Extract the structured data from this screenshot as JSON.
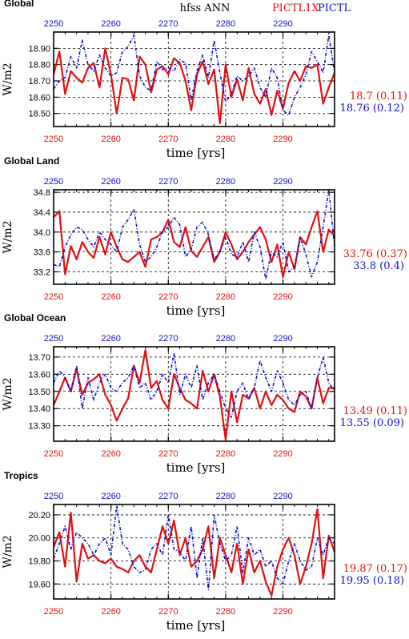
{
  "header": {
    "title": "hfss ANN",
    "legend_run1": "PICTL1X",
    "legend_run2": "PICTL"
  },
  "colors": {
    "run1": "#e01010",
    "run2": "#1010d0",
    "axis": "#000000",
    "grid": "#000000"
  },
  "chart_data": [
    {
      "type": "line",
      "title": "Global",
      "xlabel": "time [yrs]",
      "ylabel": "W/m2",
      "xlim": [
        2250,
        2299
      ],
      "ylim": [
        18.42,
        19.0
      ],
      "grid": true,
      "yticks": [
        18.5,
        18.6,
        18.7,
        18.8,
        18.9
      ],
      "ytick_labels": [
        "18.50",
        "18.60",
        "18.70",
        "18.80",
        "18.90"
      ],
      "xticks": [
        2250,
        2260,
        2270,
        2280,
        2290
      ],
      "xtick_labels": [
        "2250",
        "2260",
        "2270",
        "2280",
        "2290"
      ],
      "series": [
        {
          "name": "PICTL1X",
          "color": "#e01010",
          "stat": "18.7 (0.11)",
          "values": [
            18.74,
            18.88,
            18.62,
            18.76,
            18.72,
            18.69,
            18.78,
            18.81,
            18.66,
            18.9,
            18.74,
            18.5,
            18.72,
            18.71,
            18.58,
            18.85,
            18.8,
            18.63,
            18.77,
            18.79,
            18.74,
            18.84,
            18.81,
            18.7,
            18.52,
            18.74,
            18.82,
            18.68,
            18.77,
            18.44,
            18.8,
            18.6,
            18.71,
            18.58,
            18.78,
            18.62,
            18.56,
            18.65,
            18.49,
            18.64,
            18.53,
            18.69,
            18.76,
            18.7,
            18.79,
            18.78,
            18.8,
            18.56,
            18.66,
            18.75
          ]
        },
        {
          "name": "PICTL",
          "color": "#1010d0",
          "stat": "18.76 (0.12)",
          "values": [
            18.65,
            18.7,
            18.72,
            18.85,
            18.78,
            18.95,
            18.8,
            18.76,
            18.86,
            18.78,
            18.73,
            18.75,
            18.88,
            18.91,
            18.98,
            18.73,
            18.66,
            18.64,
            18.82,
            18.77,
            18.78,
            18.76,
            18.83,
            18.81,
            18.58,
            18.76,
            18.86,
            18.72,
            18.95,
            18.75,
            18.57,
            18.62,
            18.73,
            18.7,
            18.73,
            18.78,
            18.66,
            18.6,
            18.78,
            18.72,
            18.52,
            18.49,
            18.6,
            18.66,
            18.74,
            18.88,
            18.82,
            18.75,
            18.98,
            18.75
          ]
        }
      ]
    },
    {
      "type": "line",
      "title": "Global Land",
      "xlabel": "time [yrs]",
      "ylabel": "W/m2",
      "xlim": [
        2250,
        2299
      ],
      "ylim": [
        32.95,
        34.85
      ],
      "grid": true,
      "yticks": [
        33.2,
        33.6,
        34.0,
        34.4,
        34.8
      ],
      "ytick_labels": [
        "33.2",
        "33.6",
        "34.0",
        "34.4",
        "34.8"
      ],
      "xticks": [
        2250,
        2260,
        2270,
        2280,
        2290
      ],
      "xtick_labels": [
        "2250",
        "2260",
        "2270",
        "2280",
        "2290"
      ],
      "series": [
        {
          "name": "PICTL1X",
          "color": "#e01010",
          "stat": "33.76 (0.37)",
          "values": [
            34.3,
            34.42,
            33.15,
            33.72,
            33.45,
            33.8,
            33.6,
            33.48,
            33.9,
            33.55,
            34.0,
            33.7,
            33.45,
            33.4,
            33.5,
            33.6,
            33.3,
            33.85,
            33.9,
            34.0,
            34.25,
            33.8,
            33.7,
            34.1,
            33.62,
            33.5,
            33.7,
            33.9,
            33.4,
            33.6,
            34.0,
            33.75,
            33.45,
            33.6,
            33.8,
            33.95,
            34.1,
            33.85,
            33.4,
            33.75,
            33.1,
            33.6,
            33.25,
            33.9,
            33.75,
            34.1,
            34.42,
            33.6,
            34.05,
            33.92
          ]
        },
        {
          "name": "PICTL",
          "color": "#1010d0",
          "stat": "33.8 (0.4)",
          "values": [
            33.35,
            33.3,
            33.7,
            33.95,
            34.1,
            34.05,
            33.85,
            33.7,
            34.0,
            33.85,
            33.75,
            33.6,
            34.1,
            34.25,
            34.45,
            33.75,
            33.4,
            33.5,
            33.7,
            34.0,
            34.1,
            34.3,
            34.15,
            33.5,
            33.65,
            34.1,
            34.2,
            33.95,
            33.45,
            33.6,
            33.9,
            33.55,
            33.5,
            33.8,
            33.4,
            34.0,
            33.7,
            33.05,
            33.6,
            33.5,
            33.8,
            33.2,
            33.3,
            33.9,
            33.55,
            33.1,
            33.4,
            34.1,
            34.85,
            33.7
          ]
        }
      ]
    },
    {
      "type": "line",
      "title": "Global Ocean",
      "xlabel": "time [yrs]",
      "ylabel": "W/m2",
      "xlim": [
        2250,
        2299
      ],
      "ylim": [
        13.21,
        13.76
      ],
      "grid": true,
      "yticks": [
        13.3,
        13.4,
        13.5,
        13.6,
        13.7
      ],
      "ytick_labels": [
        "13.30",
        "13.40",
        "13.50",
        "13.60",
        "13.70"
      ],
      "xticks": [
        2250,
        2260,
        2270,
        2280,
        2290
      ],
      "xtick_labels": [
        "2250",
        "2260",
        "2270",
        "2280",
        "2290"
      ],
      "series": [
        {
          "name": "PICTL1X",
          "color": "#e01010",
          "stat": "13.49 (0.11)",
          "values": [
            13.42,
            13.5,
            13.58,
            13.5,
            13.63,
            13.48,
            13.55,
            13.57,
            13.6,
            13.48,
            13.42,
            13.33,
            13.4,
            13.46,
            13.65,
            13.55,
            13.74,
            13.52,
            13.56,
            13.45,
            13.4,
            13.6,
            13.52,
            13.45,
            13.43,
            13.4,
            13.62,
            13.5,
            13.6,
            13.47,
            13.22,
            13.5,
            13.32,
            13.48,
            13.46,
            13.52,
            13.4,
            13.5,
            13.42,
            13.48,
            13.45,
            13.4,
            13.38,
            13.5,
            13.47,
            13.4,
            13.58,
            13.43,
            13.52,
            13.52
          ]
        },
        {
          "name": "PICTL",
          "color": "#1010d0",
          "stat": "13.55 (0.09)",
          "values": [
            13.55,
            13.62,
            13.58,
            13.5,
            13.65,
            13.4,
            13.58,
            13.45,
            13.55,
            13.6,
            13.52,
            13.5,
            13.55,
            13.58,
            13.65,
            13.52,
            13.55,
            13.45,
            13.5,
            13.6,
            13.55,
            13.72,
            13.48,
            13.6,
            13.52,
            13.65,
            13.45,
            13.55,
            13.6,
            13.5,
            13.4,
            13.35,
            13.5,
            13.55,
            13.45,
            13.52,
            13.68,
            13.58,
            13.5,
            13.62,
            13.55,
            13.45,
            13.42,
            13.48,
            13.5,
            13.4,
            13.58,
            13.7,
            13.55,
            13.5
          ]
        }
      ]
    },
    {
      "type": "line",
      "title": "Tropics",
      "xlabel": "time [yrs]",
      "ylabel": "W/m2",
      "xlim": [
        2250,
        2299
      ],
      "ylim": [
        19.47,
        20.29
      ],
      "grid": true,
      "yticks": [
        19.6,
        19.8,
        20.0,
        20.2
      ],
      "ytick_labels": [
        "19.60",
        "19.80",
        "20.00",
        "20.20"
      ],
      "xticks": [
        2250,
        2260,
        2270,
        2280,
        2290
      ],
      "xtick_labels": [
        "2250",
        "2260",
        "2270",
        "2280",
        "2290"
      ],
      "series": [
        {
          "name": "PICTL1X",
          "color": "#e01010",
          "stat": "19.87 (0.17)",
          "values": [
            19.92,
            20.05,
            19.75,
            20.22,
            19.62,
            19.95,
            19.82,
            19.85,
            19.8,
            19.78,
            19.82,
            19.75,
            19.73,
            19.7,
            19.8,
            19.85,
            19.75,
            19.7,
            19.9,
            20.1,
            19.95,
            20.15,
            19.85,
            20.0,
            19.75,
            19.8,
            19.9,
            20.1,
            19.65,
            20.0,
            19.85,
            19.7,
            19.95,
            19.6,
            19.9,
            19.7,
            19.8,
            19.62,
            19.5,
            19.75,
            19.9,
            20.0,
            19.85,
            19.6,
            19.75,
            19.95,
            20.25,
            19.65,
            20.02,
            19.88
          ]
        },
        {
          "name": "PICTL",
          "color": "#1010d0",
          "stat": "19.95 (0.18)",
          "values": [
            19.82,
            19.95,
            20.1,
            19.9,
            20.05,
            20.0,
            19.95,
            19.85,
            19.95,
            20.0,
            19.85,
            20.28,
            19.95,
            19.9,
            19.75,
            19.7,
            19.72,
            19.9,
            19.95,
            19.85,
            20.2,
            19.9,
            19.88,
            19.8,
            20.1,
            19.65,
            20.0,
            19.55,
            20.2,
            19.95,
            19.8,
            19.85,
            20.1,
            19.7,
            20.0,
            19.85,
            19.9,
            19.75,
            19.8,
            19.65,
            19.6,
            19.8,
            19.95,
            19.8,
            19.72,
            19.75,
            20.0,
            19.85,
            20.0,
            19.95
          ]
        }
      ]
    }
  ]
}
